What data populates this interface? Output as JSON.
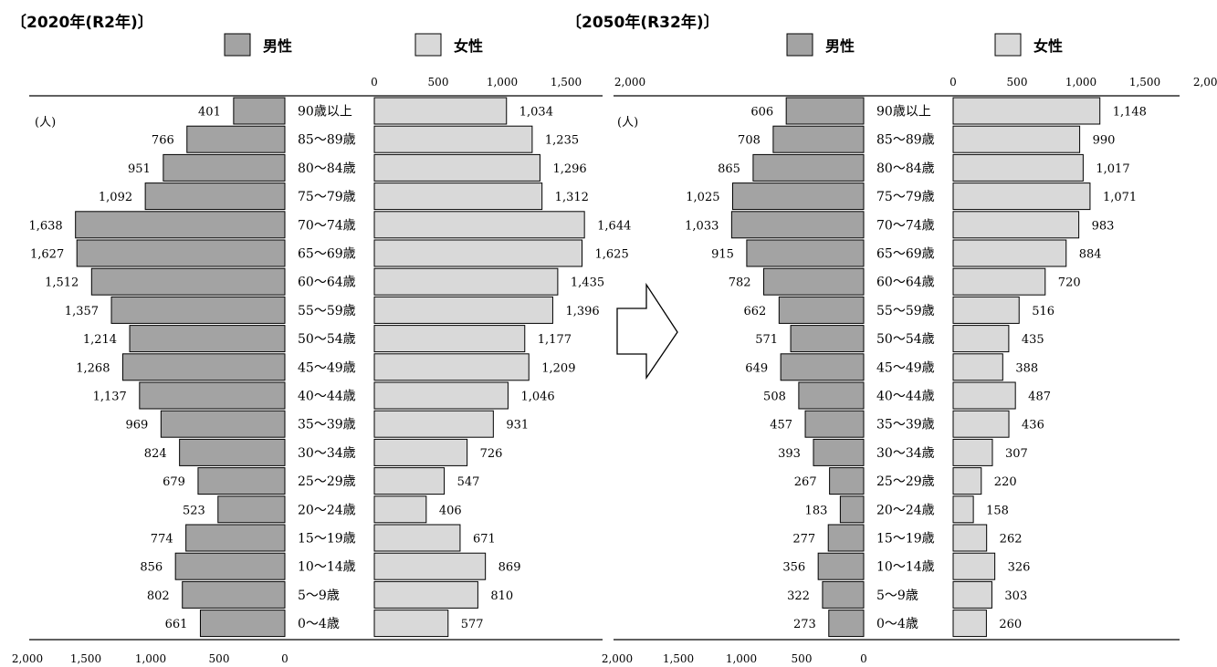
{
  "arrow_icon": "right-arrow-icon",
  "colors": {
    "male": "#a3a3a3",
    "female": "#d9d9d9",
    "stroke": "#000000"
  },
  "chart_data": [
    {
      "type": "bar",
      "orientation": "horizontal",
      "title": "〔2020年(R2年)〕",
      "legend": [
        "男性",
        "女性"
      ],
      "unit_label": "(人)",
      "age_groups": [
        "90歳以上",
        "85～89歳",
        "80～84歳",
        "75～79歳",
        "70～74歳",
        "65～69歳",
        "60～64歳",
        "55～59歳",
        "50～54歳",
        "45～49歳",
        "40～44歳",
        "35～39歳",
        "30～34歳",
        "25～29歳",
        "20～24歳",
        "15～19歳",
        "10～14歳",
        "5～9歳",
        "0～4歳"
      ],
      "series": [
        {
          "name": "男性",
          "values": [
            401,
            766,
            951,
            1092,
            1638,
            1627,
            1512,
            1357,
            1214,
            1268,
            1137,
            969,
            824,
            679,
            523,
            774,
            856,
            802,
            661
          ]
        },
        {
          "name": "女性",
          "values": [
            1034,
            1235,
            1296,
            1312,
            1644,
            1625,
            1435,
            1396,
            1177,
            1209,
            1046,
            931,
            726,
            547,
            406,
            671,
            869,
            810,
            577
          ]
        }
      ],
      "male_axis_ticks": [
        "2,000",
        "1,500",
        "1,000",
        "500",
        "0"
      ],
      "female_axis_ticks": [
        "0",
        "500",
        "1,000",
        "1,500",
        "2,000"
      ],
      "xlim": [
        0,
        2000
      ]
    },
    {
      "type": "bar",
      "orientation": "horizontal",
      "title": "〔2050年(R32年)〕",
      "legend": [
        "男性",
        "女性"
      ],
      "unit_label": "(人)",
      "age_groups": [
        "90歳以上",
        "85～89歳",
        "80～84歳",
        "75～79歳",
        "70～74歳",
        "65～69歳",
        "60～64歳",
        "55～59歳",
        "50～54歳",
        "45～49歳",
        "40～44歳",
        "35～39歳",
        "30～34歳",
        "25～29歳",
        "20～24歳",
        "15～19歳",
        "10～14歳",
        "5～9歳",
        "0～4歳"
      ],
      "series": [
        {
          "name": "男性",
          "values": [
            606,
            708,
            865,
            1025,
            1033,
            915,
            782,
            662,
            571,
            649,
            508,
            457,
            393,
            267,
            183,
            277,
            356,
            322,
            273
          ]
        },
        {
          "name": "女性",
          "values": [
            1148,
            990,
            1017,
            1071,
            983,
            884,
            720,
            516,
            435,
            388,
            487,
            436,
            307,
            220,
            158,
            262,
            326,
            303,
            260
          ]
        }
      ],
      "male_axis_ticks": [
        "2,000",
        "1,500",
        "1,000",
        "500",
        "0"
      ],
      "female_axis_ticks": [
        "0",
        "500",
        "1,000",
        "1,500",
        "2,000"
      ],
      "xlim": [
        0,
        2000
      ]
    }
  ]
}
